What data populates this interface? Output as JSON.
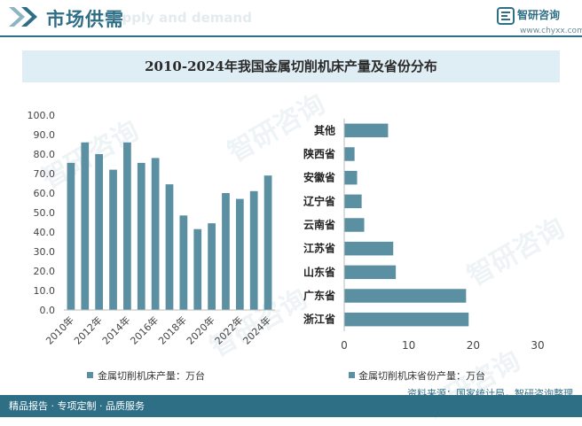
{
  "header": {
    "title": "市场供需",
    "ghost_text": "Supply and demand",
    "brand": "智研咨询",
    "url": "www.chyxx.com"
  },
  "chart_title": "2010-2024年我国金属切削机床产量及省份分布",
  "footer": {
    "left_text": "精品报告 · 专项定制 · 品质服务",
    "source": "资料来源：国家统计局，智研咨询整理"
  },
  "watermark": "智研咨询",
  "colors": {
    "brand": "#2f6f86",
    "bar": "#5b8fa2",
    "band": "#dfeef5"
  },
  "chart_data": [
    {
      "type": "bar",
      "categories": [
        "2010年",
        "2011年",
        "2012年",
        "2013年",
        "2014年",
        "2015年",
        "2016年",
        "2017年",
        "2018年",
        "2019年",
        "2020年",
        "2021年",
        "2022年",
        "2023年",
        "2024年"
      ],
      "tick_labels": [
        "2010年",
        "2012年",
        "2014年",
        "2016年",
        "2018年",
        "2020年",
        "2022年",
        "2024年"
      ],
      "series": [
        {
          "name": "金属切削机床产量：万台",
          "values": [
            75.5,
            86,
            80,
            72,
            86,
            75.5,
            78,
            64.5,
            48.5,
            41.5,
            44.5,
            60,
            57,
            61,
            69
          ]
        }
      ],
      "yticks": [
        "0.0",
        "10.0",
        "20.0",
        "30.0",
        "40.0",
        "50.0",
        "60.0",
        "70.0",
        "80.0",
        "90.0",
        "100.0"
      ],
      "ylim": [
        0,
        100
      ],
      "legend": "bottom",
      "grid": false
    },
    {
      "type": "bar",
      "orientation": "horizontal",
      "categories": [
        "其他",
        "陕西省",
        "安徽省",
        "辽宁省",
        "云南省",
        "江苏省",
        "山东省",
        "广东省",
        "浙江省"
      ],
      "series": [
        {
          "name": "金属切削机床省份产量：万台",
          "values": [
            6.8,
            1.6,
            2.0,
            2.7,
            3.1,
            7.6,
            8.0,
            18.9,
            19.3
          ]
        }
      ],
      "xticks": [
        "0",
        "10",
        "20",
        "30"
      ],
      "xlim": [
        0,
        30
      ],
      "legend": "bottom",
      "grid": false
    }
  ]
}
